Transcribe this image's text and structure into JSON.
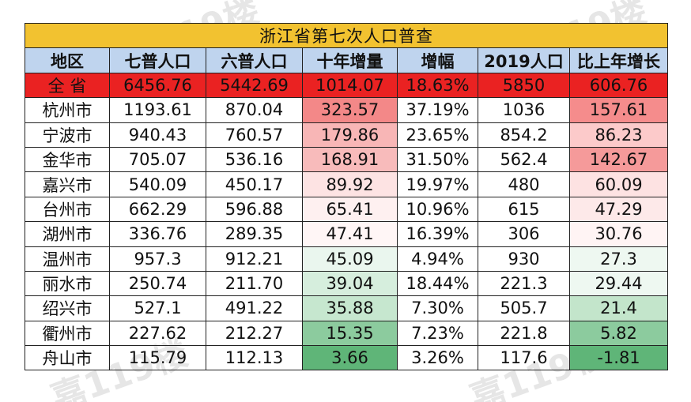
{
  "title": "浙江省第七次人口普查",
  "headers": [
    "地区",
    "七普人口",
    "六普人口",
    "十年增量",
    "增幅",
    "2019人口",
    "比上年增长"
  ],
  "total": [
    "全 省",
    "6456.76",
    "5442.69",
    "1014.07",
    "18.63%",
    "5850",
    "606.76"
  ],
  "rows": [
    [
      "杭州市",
      "1193.61",
      "870.04",
      "323.57",
      "37.19%",
      "1036",
      "157.61"
    ],
    [
      "宁波市",
      "940.43",
      "760.57",
      "179.86",
      "23.65%",
      "854.2",
      "86.23"
    ],
    [
      "金华市",
      "705.07",
      "536.16",
      "168.91",
      "31.50%",
      "562.4",
      "142.67"
    ],
    [
      "嘉兴市",
      "540.09",
      "450.17",
      "89.92",
      "19.97%",
      "480",
      "60.09"
    ],
    [
      "台州市",
      "662.29",
      "596.88",
      "65.41",
      "10.96%",
      "615",
      "47.29"
    ],
    [
      "湖州市",
      "336.76",
      "289.35",
      "47.41",
      "16.39%",
      "306",
      "30.76"
    ],
    [
      "温州市",
      "957.3",
      "912.21",
      "45.09",
      "4.94%",
      "930",
      "27.3"
    ],
    [
      "丽水市",
      "250.74",
      "211.70",
      "39.04",
      "18.44%",
      "221.3",
      "29.44"
    ],
    [
      "绍兴市",
      "527.1",
      "491.22",
      "35.88",
      "7.30%",
      "505.7",
      "21.4"
    ],
    [
      "衢州市",
      "227.62",
      "212.27",
      "15.35",
      "7.23%",
      "221.8",
      "5.82"
    ],
    [
      "舟山市",
      "115.79",
      "112.13",
      "3.66",
      "3.26%",
      "117.6",
      "-1.81"
    ]
  ],
  "increment_colors": [
    "#f38888",
    "#f8b6b6",
    "#f8bbbb",
    "#fde3e3",
    "#fef0f0",
    "#fff6f6",
    "#eaf6ee",
    "#d6eedd",
    "#c6e7cf",
    "#8ccb9e",
    "#5fb578"
  ],
  "growth_colors": [
    "#f58c8c",
    "#fccaca",
    "#f59a9a",
    "#fde2e2",
    "#fde9e9",
    "#fff4f4",
    "#eef8f1",
    "#eef8f1",
    "#c3e5cb",
    "#8ccb9e",
    "#5fb578"
  ],
  "watermark": "嘉119楼"
}
